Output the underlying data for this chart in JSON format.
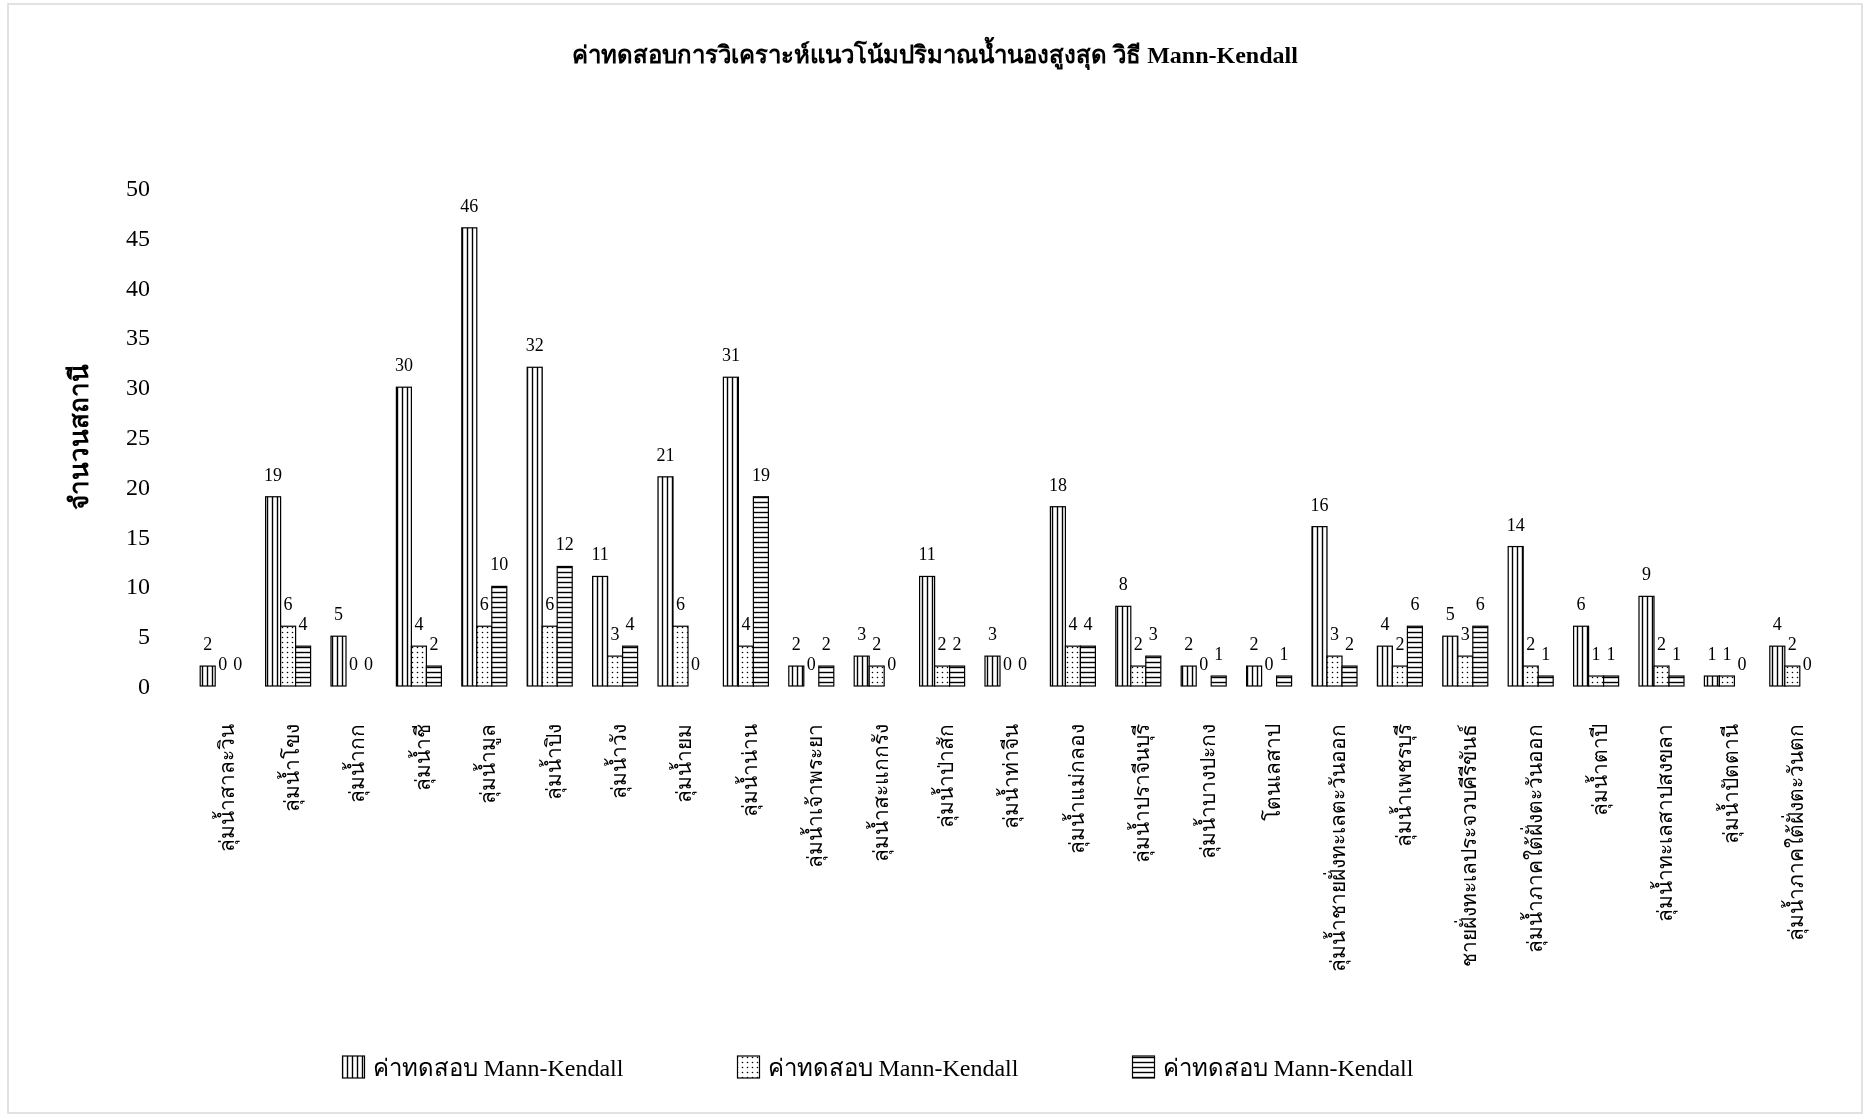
{
  "chart_data": {
    "type": "bar",
    "title": "ค่าทดสอบการวิเคราะห์แนวโน้มปริมาณน้ำนองสูงสุด วิธี Mann-Kendall",
    "ylabel": "จำนวนสถานี",
    "categories": [
      "ลุ่มน้ำสาละวิน",
      "ลุ่มน้ำโขง",
      "ลุ่มน้ำกก",
      "ลุ่มน้ำชี",
      "ลุ่มน้ำมูล",
      "ลุ่มน้ำปิง",
      "ลุ่มน้ำวัง",
      "ลุ่มน้ำยม",
      "ลุ่มน้ำน่าน",
      "ลุ่มน้ำเจ้าพระยา",
      "ลุ่มน้ำสะแกกรัง",
      "ลุ่มน้ำป่าสัก",
      "ลุ่มน้ำท่าจีน",
      "ลุ่มน้ำแม่กลอง",
      "ลุ่มน้ำปราจีนบุรี",
      "ลุ่มน้ำบางปะกง",
      "โตนเลสาป",
      "ลุ่มน้ำชายฝั่งทะเลตะวันออก",
      "ลุ่มน้ำเพชรบุรี",
      "ชายฝั่งทะเลประจวบคีรีขันธ์",
      "ลุ่มน้ำภาคใต้ฝั่งตะวันออก",
      "ลุ่มน้ำตาปี",
      "ลุ่มน้ำทะเลสาปสงขลา",
      "ลุ่มน้ำปัตตานี",
      "ลุ่มน้ำภาคใต้ฝั่งตะวันตก"
    ],
    "series": [
      {
        "name": "ค่าทดสอบ Mann-Kendall",
        "color": "#000000",
        "values": [
          2,
          19,
          5,
          30,
          46,
          32,
          11,
          21,
          31,
          2,
          3,
          11,
          3,
          18,
          8,
          2,
          2,
          16,
          4,
          5,
          14,
          6,
          9,
          1,
          4
        ]
      },
      {
        "name": "ค่าทดสอบ Mann-Kendall",
        "color": "#000000",
        "values": [
          0,
          6,
          0,
          4,
          6,
          6,
          3,
          6,
          4,
          0,
          2,
          2,
          0,
          4,
          2,
          0,
          0,
          3,
          2,
          3,
          2,
          1,
          2,
          1,
          2
        ]
      },
      {
        "name": "ค่าทดสอบ Mann-Kendall",
        "color": "#000000",
        "values": [
          0,
          4,
          0,
          2,
          10,
          12,
          4,
          0,
          19,
          2,
          0,
          2,
          0,
          4,
          3,
          1,
          1,
          2,
          6,
          6,
          1,
          1,
          1,
          0,
          0
        ]
      }
    ],
    "ylim": [
      0,
      50
    ],
    "yticks": [
      0,
      5,
      10,
      15,
      20,
      25,
      30,
      35,
      40,
      45,
      50
    ],
    "data_labels": true,
    "legend": "bottom",
    "grid": false
  }
}
